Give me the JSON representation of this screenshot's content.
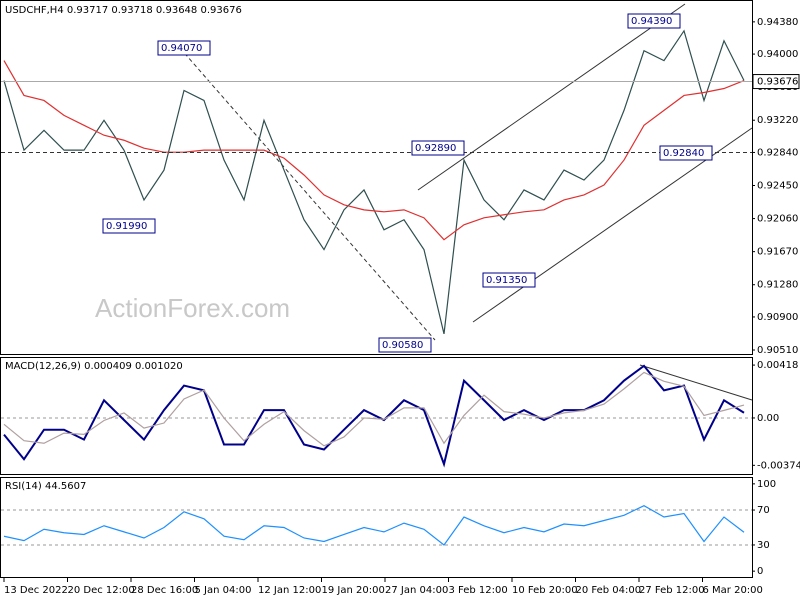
{
  "chart_data": [
    {
      "type": "line",
      "title": "USDCHF,H4  0.93717 0.93718 0.93648 0.93676",
      "watermark": "ActionForex.com",
      "last_price": 0.93676,
      "series": [
        {
          "color": "#2f4f4f",
          "values": [
            0.93688,
            0.92867,
            0.93101,
            0.92867,
            0.92867,
            0.93219,
            0.92867,
            0.9228,
            0.92632,
            0.93571,
            0.93453,
            0.9275,
            0.9228,
            0.93219,
            0.92632,
            0.92046,
            0.91694,
            0.92163,
            0.92398,
            0.91928,
            0.92046,
            0.91694,
            0.907,
            0.9275,
            0.9228,
            0.92046,
            0.92398,
            0.9228,
            0.92632,
            0.92515,
            0.9275,
            0.93336,
            0.9404,
            0.93923,
            0.94274,
            0.93453,
            0.94157,
            0.93688
          ]
        },
        {
          "color": "#e03030",
          "values": [
            0.93923,
            0.93512,
            0.93453,
            0.93277,
            0.9316,
            0.93043,
            0.92984,
            0.9289,
            0.92843,
            0.92843,
            0.92867,
            0.92867,
            0.92867,
            0.92867,
            0.92773,
            0.92574,
            0.92339,
            0.92222,
            0.92163,
            0.9214,
            0.92163,
            0.92069,
            0.91811,
            0.91987,
            0.92069,
            0.92105,
            0.9214,
            0.92163,
            0.9228,
            0.92339,
            0.92456,
            0.9275,
            0.9316,
            0.93336,
            0.93512,
            0.93547,
            0.93594,
            0.93688
          ]
        }
      ],
      "ylim": [
        0.90463,
        0.94626
      ],
      "yticks": [
        {
          "value": 0.9438,
          "label": "0.94380"
        },
        {
          "value": 0.94,
          "label": "0.94000"
        },
        {
          "value": 0.9361,
          "label": "0.93610"
        },
        {
          "value": 0.9322,
          "label": "0.93220"
        },
        {
          "value": 0.9284,
          "label": "0.92840"
        },
        {
          "value": 0.9245,
          "label": "0.92450"
        },
        {
          "value": 0.9206,
          "label": "0.92060"
        },
        {
          "value": 0.9167,
          "label": "0.91670"
        },
        {
          "value": 0.9128,
          "label": "0.91280"
        },
        {
          "value": 0.909,
          "label": "0.90900"
        },
        {
          "value": 0.9051,
          "label": "0.90510"
        }
      ],
      "annotations": [
        {
          "value": 0.9407,
          "label": "0.94070"
        },
        {
          "value": 0.9199,
          "label": "0.91990"
        },
        {
          "value": 0.9289,
          "label": "0.92890"
        },
        {
          "value": 0.9058,
          "label": "0.90580"
        },
        {
          "value": 0.9135,
          "label": "0.91350"
        },
        {
          "value": 0.9439,
          "label": "0.94390"
        },
        {
          "value": 0.9284,
          "label": "0.92840"
        }
      ]
    },
    {
      "type": "line",
      "title": "MACD(12,26,9) 0.000409 0.001020",
      "series": [
        {
          "color": "#00008b",
          "values": [
            -0.00132,
            -0.00326,
            -0.00093,
            -0.00093,
            -0.00171,
            0.0014,
            -0.00016,
            -0.00171,
            0.00062,
            0.00256,
            0.00218,
            -0.0021,
            -0.0021,
            0.00062,
            0.00062,
            -0.0021,
            -0.00249,
            -0.00093,
            0.00062,
            -0.00016,
            0.0014,
            0.00062,
            -0.00365,
            0.00295,
            0.0014,
            -0.00016,
            0.00062,
            -0.00016,
            0.00062,
            0.00062,
            0.0014,
            0.00295,
            0.00412,
            0.00218,
            0.00256,
            -0.00171,
            0.0014,
            0.00041
          ]
        },
        {
          "color": "#b0a0a0",
          "values": [
            -0.0005,
            -0.0018,
            -0.002,
            -0.0012,
            -0.0013,
            -0.0002,
            0.0004,
            -0.0008,
            -0.0004,
            0.0015,
            0.0022,
            0,
            -0.0018,
            -0.0005,
            0.0005,
            -0.001,
            -0.0022,
            -0.0015,
            0,
            -0.0001,
            0.0008,
            0.0008,
            -0.002,
            0.0002,
            0.0018,
            0.0005,
            0.0003,
            0,
            0.0004,
            0.0006,
            0.0011,
            0.0023,
            0.0036,
            0.0029,
            0.0025,
            0.0002,
            0.0006,
            0.00102
          ]
        }
      ],
      "ylim": [
        -0.00443,
        0.00474
      ],
      "yticks": [
        0.00418,
        {
          "value": 0,
          "label": "0.00"
        },
        -0.003744
      ]
    },
    {
      "type": "line",
      "title": "RSI(14) 44.5607",
      "series": [
        {
          "color": "#1e90ff",
          "values": [
            40,
            35,
            48,
            44,
            42,
            52,
            45,
            38,
            50,
            68,
            60,
            40,
            36,
            52,
            50,
            38,
            34,
            42,
            50,
            45,
            55,
            48,
            30,
            62,
            52,
            44,
            50,
            45,
            54,
            52,
            58,
            64,
            75,
            62,
            66,
            34,
            62,
            44.56
          ]
        }
      ],
      "ylim": [
        -6.7,
        106.7
      ],
      "yticks": [
        100,
        70,
        30,
        0
      ],
      "levels": [
        70,
        30
      ]
    }
  ],
  "x_axis": {
    "labels": [
      "13 Dec 2022",
      "20 Dec 12:00",
      "28 Dec 16:00",
      "5 Jan 04:00",
      "12 Jan 12:00",
      "19 Jan 20:00",
      "27 Jan 04:00",
      "3 Feb 12:00",
      "10 Feb 20:00",
      "20 Feb 04:00",
      "27 Feb 12:00",
      "6 Mar 20:00"
    ]
  }
}
